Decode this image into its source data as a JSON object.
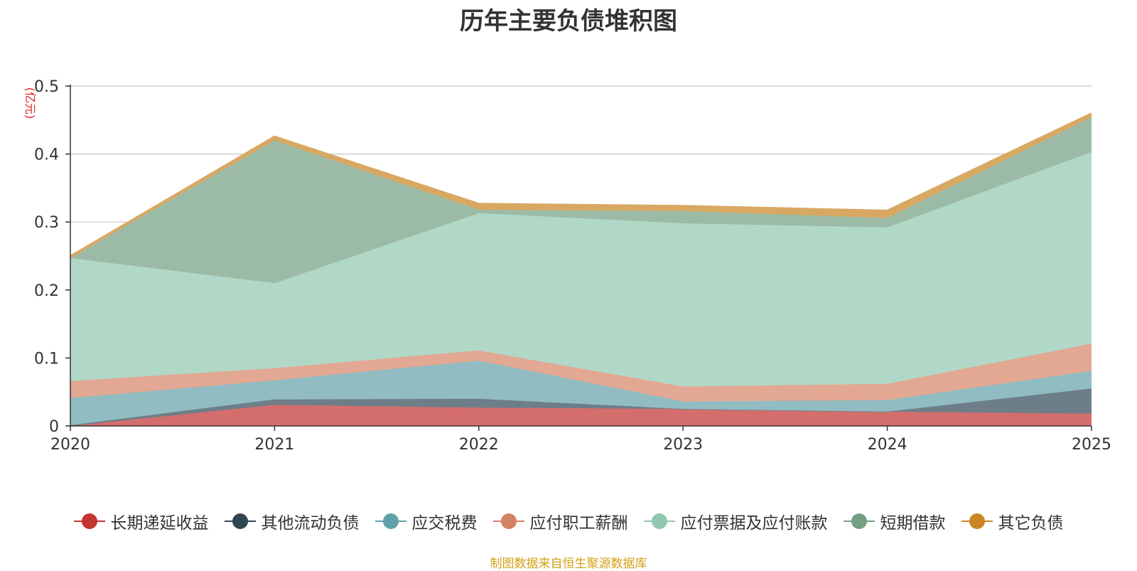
{
  "chart_data": {
    "type": "area",
    "stacked": true,
    "title": "历年主要负债堆积图",
    "unit_label": "(亿元)",
    "categories": [
      "2020",
      "2021",
      "2022",
      "2023",
      "2024",
      "2025"
    ],
    "ylim": [
      0,
      0.5
    ],
    "yticks": [
      0,
      0.1,
      0.2,
      0.3,
      0.4,
      0.5
    ],
    "ytick_labels": [
      "0",
      "0.1",
      "0.2",
      "0.3",
      "0.4",
      "0.5"
    ],
    "grid": true,
    "legend_position": "bottom",
    "series": [
      {
        "name": "长期递延收益",
        "color": "#c23531",
        "fill": "#d36e6c",
        "values": [
          0,
          0.031,
          0.027,
          0.025,
          0.021,
          0.018
        ]
      },
      {
        "name": "其他流动负债",
        "color": "#2f4554",
        "fill": "#6e7e89",
        "values": [
          0.001,
          0.008,
          0.013,
          0.0,
          0.0,
          0.037
        ]
      },
      {
        "name": "应交税费",
        "color": "#61a0a8",
        "fill": "#90bcc2",
        "values": [
          0.04,
          0.028,
          0.056,
          0.011,
          0.017,
          0.026
        ]
      },
      {
        "name": "应付职工薪酬",
        "color": "#d48265",
        "fill": "#e2a893",
        "values": [
          0.025,
          0.018,
          0.015,
          0.022,
          0.024,
          0.04
        ]
      },
      {
        "name": "应付票据及应付账款",
        "color": "#91c7ae",
        "fill": "#b1d8c6",
        "values": [
          0.181,
          0.125,
          0.202,
          0.24,
          0.23,
          0.282
        ]
      },
      {
        "name": "短期借款",
        "color": "#749f83",
        "fill": "#9cbba7",
        "values": [
          0.001,
          0.21,
          0.005,
          0.018,
          0.014,
          0.051
        ]
      },
      {
        "name": "其它负债",
        "color": "#ca8622",
        "fill": "#d8a862",
        "values": [
          0.001,
          0.005,
          0.008,
          0.007,
          0.01,
          0.005
        ]
      }
    ]
  },
  "source_note": "制图数据来自恒生聚源数据库"
}
